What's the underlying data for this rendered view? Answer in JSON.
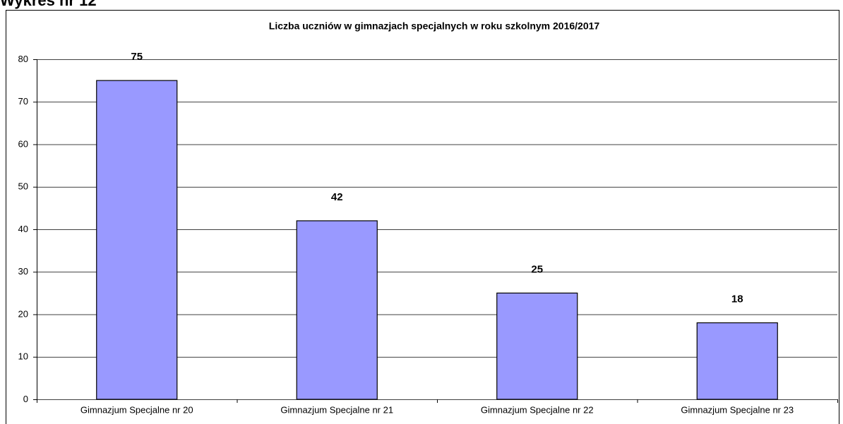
{
  "heading": "Wykres nr 12",
  "chart_data": {
    "type": "bar",
    "title": "Liczba uczniów w gimnazjach specjalnych w roku szkolnym 2016/2017",
    "categories": [
      "Gimnazjum Specjalne nr 20",
      "Gimnazjum Specjalne nr 21",
      "Gimnazjum Specjalne nr 22",
      "Gimnazjum Specjalne nr 23"
    ],
    "values": [
      75,
      42,
      25,
      18
    ],
    "color": "#9999ff",
    "ylim": [
      0,
      80
    ],
    "yticks": [
      0,
      10,
      20,
      30,
      40,
      50,
      60,
      70,
      80
    ],
    "grid": true
  }
}
